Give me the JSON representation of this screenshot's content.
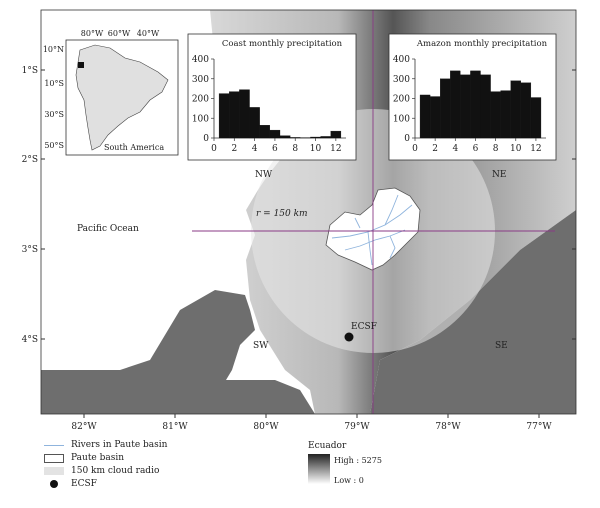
{
  "map": {
    "lat_ticks": [
      "1°S",
      "2°S",
      "3°S",
      "4°S"
    ],
    "lon_ticks": [
      "82°W",
      "81°W",
      "80°W",
      "79°W",
      "78°W",
      "77°W"
    ],
    "place_labels": {
      "pacific": "Pacific Ocean",
      "quadrant_nw": "NW",
      "quadrant_ne": "NE",
      "quadrant_sw": "SW",
      "quadrant_se": "SE",
      "radius": "r = 150 km",
      "station": "ECSF"
    },
    "inset": {
      "lat_ticks": [
        "10°N",
        "10°S",
        "30°S",
        "50°S"
      ],
      "lon_ticks": [
        "80°W",
        "60°W",
        "40°W"
      ],
      "label": "South America"
    }
  },
  "legend": {
    "rivers": "Rivers in Paute basin",
    "basin": "Paute basin",
    "cloud_radio": "150 km cloud radio",
    "ecsf": "ECSF",
    "elevation_title": "Ecuador",
    "high": "High : 5275",
    "low": "Low : 0",
    "colors": {
      "rivers": "#8fb4dd",
      "quadrant_lines": "#8a3a86",
      "land_dark": "#6e6e6e",
      "circle": "#d9d9d9"
    }
  },
  "chart_data": [
    {
      "type": "bar",
      "title": "Coast monthly precipitation",
      "categories": [
        1,
        2,
        3,
        4,
        5,
        6,
        7,
        8,
        9,
        10,
        11,
        12
      ],
      "values": [
        225,
        235,
        245,
        155,
        65,
        40,
        12,
        3,
        2,
        5,
        8,
        35
      ],
      "xticks": [
        0,
        2,
        4,
        6,
        8,
        10,
        12
      ],
      "yticks": [
        0,
        100,
        200,
        300,
        400
      ],
      "xlim": [
        0,
        13
      ],
      "ylim": [
        0,
        400
      ]
    },
    {
      "type": "bar",
      "title": "Amazon monthly precipitation",
      "categories": [
        1,
        2,
        3,
        4,
        5,
        6,
        7,
        8,
        9,
        10,
        11,
        12
      ],
      "values": [
        218,
        210,
        300,
        340,
        320,
        340,
        320,
        235,
        240,
        290,
        280,
        205
      ],
      "xticks": [
        0,
        2,
        4,
        6,
        8,
        10,
        12
      ],
      "yticks": [
        0,
        100,
        200,
        300,
        400
      ],
      "xlim": [
        0,
        13
      ],
      "ylim": [
        0,
        400
      ]
    }
  ]
}
